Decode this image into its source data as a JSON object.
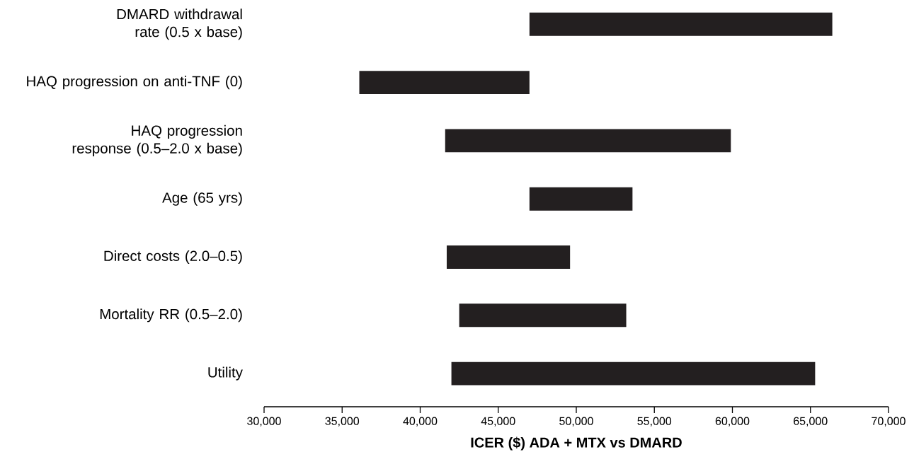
{
  "chart_data": {
    "type": "bar",
    "orientation": "horizontal",
    "xlabel": "ICER ($) ADA + MTX vs DMARD",
    "categories": [
      "DMARD withdrawal rate (0.5 x base)",
      "HAQ progression on anti-TNF (0)",
      "HAQ progression response (0.5–2.0 x base)",
      "Age (65 yrs)",
      "Direct costs (2.0–0.5)",
      "Mortality RR (0.5–2.0)",
      "Utility"
    ],
    "base": [
      47000,
      36100,
      41600,
      47000,
      41700,
      42500,
      42000
    ],
    "values": [
      19400,
      10900,
      18300,
      6600,
      7900,
      10700,
      23300
    ],
    "color": "#231f20",
    "xlim": [
      30000,
      70000
    ],
    "xticks": [
      {
        "value": 30000,
        "label": "30,000"
      },
      {
        "value": 35000,
        "label": "35,000"
      },
      {
        "value": 40000,
        "label": "40,000"
      },
      {
        "value": 45000,
        "label": "45,000"
      },
      {
        "value": 50000,
        "label": "50,000"
      },
      {
        "value": 55000,
        "label": "55,000"
      },
      {
        "value": 60000,
        "label": "60,000"
      },
      {
        "value": 65000,
        "label": "65,000"
      },
      {
        "value": 70000,
        "label": "70,000"
      }
    ]
  }
}
